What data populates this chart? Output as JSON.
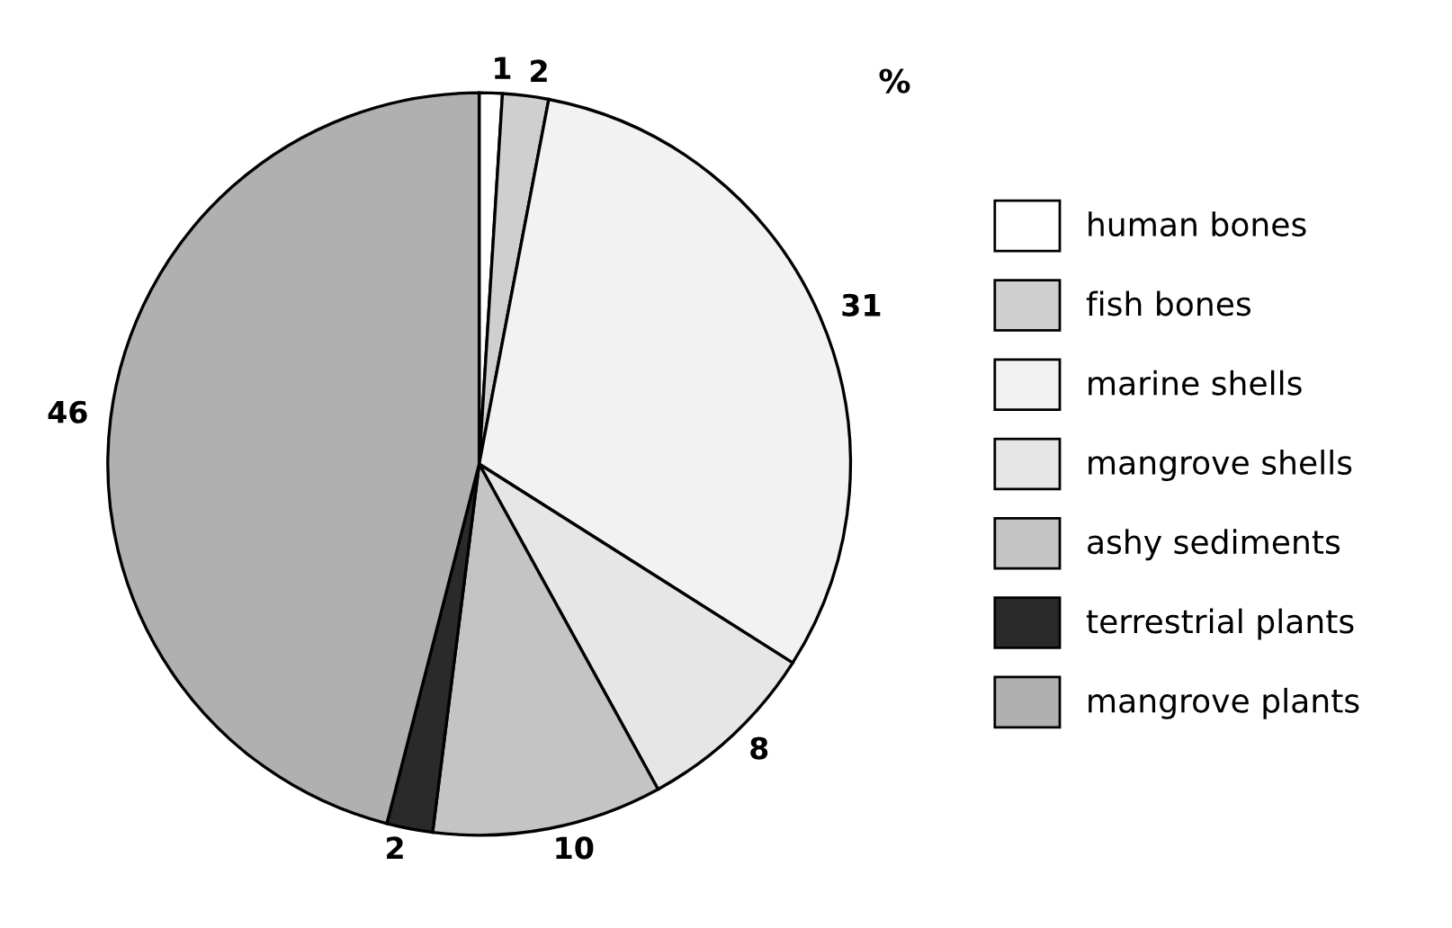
{
  "chart_data": {
    "type": "pie",
    "categories": [
      "human bones",
      "fish bones",
      "marine shells",
      "mangrove shells",
      "ashy sediments",
      "terrestrial plants",
      "mangrove plants"
    ],
    "values": [
      1,
      2,
      31,
      8,
      10,
      2,
      46
    ],
    "colors": [
      "#ffffff",
      "#cfcfcf",
      "#f2f2f2",
      "#e6e6e6",
      "#c4c4c4",
      "#2a2a2a",
      "#b0b0b0"
    ],
    "annotations": [
      "%"
    ],
    "data_labels": true,
    "legend": "right"
  }
}
